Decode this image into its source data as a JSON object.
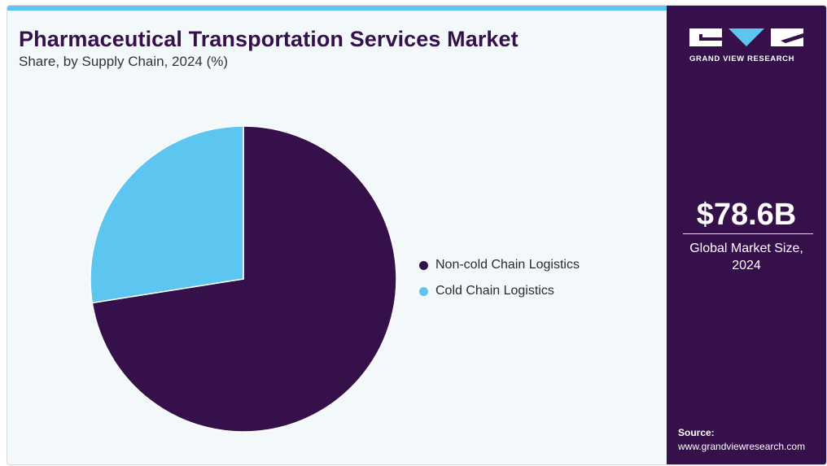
{
  "header": {
    "title": "Pharmaceutical Transportation Services Market",
    "subtitle": "Share, by Supply Chain, 2024 (%)"
  },
  "brand": {
    "logo_text": "GRAND VIEW RESEARCH",
    "logo_icon": "gvr-logo-icon"
  },
  "sidebar": {
    "market_value": "$78.6B",
    "market_label": "Global Market Size, 2024",
    "source_label": "Source:",
    "source_url": "www.grandviewresearch.com"
  },
  "colors": {
    "primary": "#35104a",
    "accent": "#5cc6f0",
    "background": "#f3f8fb"
  },
  "chart_data": {
    "type": "pie",
    "title": "Pharmaceutical Transportation Services Market",
    "subtitle": "Share, by Supply Chain, 2024 (%)",
    "categories": [
      "Non-cold Chain Logistics",
      "Cold Chain Logistics"
    ],
    "values": [
      72.5,
      27.5
    ],
    "colors": [
      "#35104a",
      "#5cc6f0"
    ],
    "legend": "right",
    "start": "12 o'clock, clockwise"
  }
}
